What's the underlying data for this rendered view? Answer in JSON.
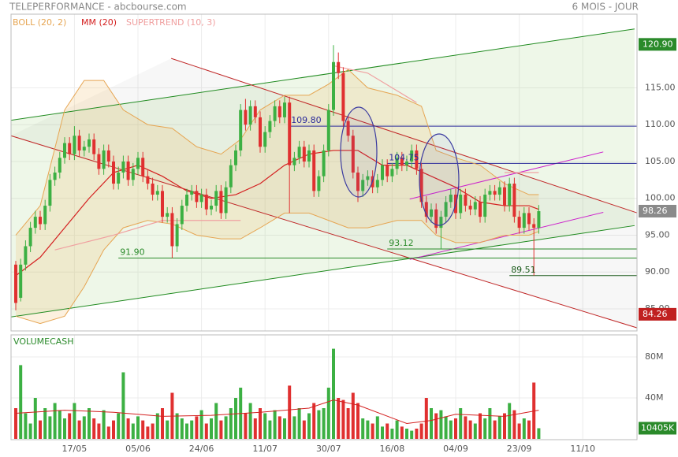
{
  "header": {
    "title": "TELEPERFORMANCE - abcbourse.com",
    "period": "6 MOIS - JOUR"
  },
  "chart_data": [
    {
      "type": "candlestick",
      "ylim": [
        82,
        125
      ],
      "yticks": [
        {
          "value": 85,
          "label": "85.00"
        },
        {
          "value": 90,
          "label": "90.00"
        },
        {
          "value": 95,
          "label": "95.00"
        },
        {
          "value": 100,
          "label": "100.00"
        },
        {
          "value": 105,
          "label": "105.00"
        },
        {
          "value": 110,
          "label": "110.00"
        },
        {
          "value": 115,
          "label": "115.00"
        }
      ],
      "grid": true,
      "up_color": "#3cb043",
      "down_color": "#e03030",
      "open": [
        91.0,
        86.5,
        91.0,
        93.5,
        96.0,
        97.5,
        96.5,
        99.0,
        102.5,
        103.5,
        105.5,
        107.5,
        106.0,
        108.5,
        106.5,
        107.0,
        108.0,
        106.0,
        104.0,
        106.5,
        105.0,
        102.0,
        103.5,
        105.0,
        102.5,
        104.0,
        105.5,
        103.0,
        102.0,
        100.5,
        101.0,
        97.5,
        98.0,
        93.5,
        96.5,
        99.0,
        100.5,
        101.0,
        99.5,
        100.5,
        98.5,
        99.0,
        101.0,
        98.0,
        101.5,
        104.5,
        106.5,
        112.0,
        110.0,
        112.5,
        111.0,
        107.0,
        109.0,
        110.5,
        112.5,
        111.0,
        113.0,
        104.5,
        105.5,
        107.0,
        105.0,
        106.5,
        101.0,
        103.0,
        106.5,
        112.0,
        118.5,
        117.0,
        110.5,
        108.5,
        103.5,
        101.0,
        102.5,
        103.0,
        101.5,
        102.5,
        104.5,
        103.0,
        104.0,
        105.5,
        104.5,
        105.0,
        106.5,
        104.0,
        99.5,
        97.5,
        98.5,
        96.0,
        97.5,
        99.5,
        100.5,
        98.0,
        100.5,
        99.0,
        98.5,
        99.5,
        97.5,
        100.5,
        101.0,
        100.5,
        101.5,
        99.0,
        102.0,
        97.5,
        96.0,
        98.0,
        96.5,
        96.0
      ],
      "high": [
        91.5,
        91.8,
        94.3,
        96.8,
        98.3,
        98.3,
        99.8,
        103.3,
        104.3,
        106.3,
        108.3,
        108.3,
        109.8,
        109.3,
        107.8,
        108.8,
        108.8,
        106.8,
        107.3,
        107.3,
        105.8,
        104.3,
        105.8,
        105.8,
        104.8,
        106.3,
        106.3,
        103.8,
        102.8,
        101.8,
        101.8,
        98.8,
        98.8,
        97.3,
        99.8,
        101.3,
        101.8,
        101.8,
        101.3,
        101.3,
        99.8,
        101.8,
        101.8,
        102.3,
        105.3,
        107.3,
        112.8,
        113.5,
        113.3,
        113.3,
        111.8,
        109.8,
        111.3,
        113.3,
        113.3,
        113.8,
        113.8,
        106.3,
        107.8,
        107.8,
        107.3,
        107.3,
        103.8,
        107.3,
        112.8,
        120.8,
        119.8,
        117.8,
        111.3,
        109.3,
        104.3,
        103.3,
        103.8,
        103.8,
        103.3,
        105.3,
        105.3,
        104.8,
        106.3,
        106.3,
        105.8,
        107.3,
        107.3,
        104.8,
        100.3,
        99.3,
        99.3,
        98.3,
        100.3,
        101.3,
        101.3,
        101.3,
        101.3,
        99.8,
        100.3,
        100.3,
        101.3,
        101.8,
        101.8,
        102.3,
        102.3,
        102.8,
        102.8,
        98.3,
        98.8,
        98.8,
        97.3,
        99.1
      ],
      "low": [
        84.8,
        86.0,
        90.2,
        92.7,
        95.2,
        95.7,
        95.7,
        98.2,
        101.7,
        102.7,
        104.7,
        105.2,
        105.2,
        105.7,
        105.7,
        106.2,
        105.2,
        103.2,
        103.2,
        104.2,
        101.2,
        101.2,
        102.7,
        101.7,
        101.7,
        103.2,
        102.2,
        101.2,
        99.7,
        99.7,
        96.7,
        96.7,
        91.9,
        92.7,
        95.7,
        98.2,
        99.7,
        98.7,
        98.7,
        97.7,
        97.7,
        98.2,
        97.2,
        97.2,
        100.7,
        103.7,
        105.7,
        109.2,
        109.2,
        110.2,
        106.2,
        106.2,
        108.2,
        109.7,
        110.2,
        110.2,
        98.0,
        103.7,
        104.7,
        104.2,
        104.2,
        100.2,
        100.2,
        102.2,
        105.7,
        111.2,
        116.2,
        109.7,
        107.7,
        102.7,
        99.5,
        100.2,
        101.7,
        100.7,
        100.7,
        101.7,
        102.2,
        102.2,
        103.2,
        103.7,
        103.7,
        104.2,
        103.2,
        98.7,
        96.7,
        96.7,
        95.2,
        93.1,
        96.7,
        98.7,
        97.2,
        97.2,
        98.2,
        97.7,
        97.7,
        96.7,
        96.7,
        99.7,
        99.7,
        99.7,
        98.2,
        98.2,
        96.7,
        95.2,
        95.2,
        95.7,
        89.51,
        95.2
      ],
      "close": [
        85.8,
        91.0,
        93.5,
        96.0,
        97.5,
        96.5,
        99.0,
        102.5,
        103.5,
        105.5,
        107.5,
        106.0,
        108.5,
        106.5,
        107.0,
        108.0,
        106.0,
        104.0,
        106.5,
        105.0,
        102.0,
        103.5,
        105.0,
        102.5,
        104.0,
        105.5,
        103.0,
        102.0,
        100.5,
        101.0,
        97.5,
        98.0,
        93.5,
        96.5,
        99.0,
        100.5,
        101.0,
        99.5,
        100.5,
        98.5,
        99.0,
        101.0,
        98.0,
        101.5,
        104.5,
        106.5,
        112.0,
        110.0,
        112.5,
        111.0,
        107.0,
        109.0,
        110.5,
        112.5,
        111.0,
        113.0,
        104.5,
        105.5,
        107.0,
        105.0,
        106.5,
        101.0,
        103.0,
        106.5,
        112.0,
        118.5,
        117.0,
        110.5,
        108.5,
        103.5,
        101.0,
        102.5,
        103.0,
        101.5,
        102.5,
        104.5,
        103.0,
        104.0,
        105.5,
        104.5,
        105.0,
        106.5,
        104.0,
        99.5,
        97.5,
        98.5,
        96.0,
        97.5,
        99.5,
        100.5,
        98.0,
        100.5,
        99.0,
        98.5,
        99.5,
        97.5,
        100.5,
        101.0,
        100.5,
        101.5,
        99.0,
        102.0,
        97.5,
        96.0,
        98.0,
        96.5,
        96.0,
        98.26
      ],
      "series": [
        {
          "name": "BOLL (20, 2)",
          "color": "#e6a552",
          "x": [
            0,
            5,
            10,
            14,
            18,
            22,
            27,
            32,
            37,
            42,
            46,
            50,
            55,
            60,
            64,
            68,
            72,
            78,
            83,
            86,
            90,
            95,
            100,
            105,
            107
          ],
          "upper": [
            95,
            99,
            112,
            116,
            116,
            112,
            110,
            109.5,
            107,
            106,
            108,
            112,
            114,
            114,
            115.5,
            117.5,
            115,
            114,
            112.5,
            106.5,
            105.5,
            104.5,
            102,
            100.5,
            100.5
          ],
          "lower": [
            84,
            83,
            84,
            88,
            93,
            96,
            97,
            96.5,
            95,
            94.5,
            94.5,
            96,
            98,
            98,
            97,
            96,
            96,
            97,
            97,
            95,
            94,
            94,
            95,
            95,
            95.5
          ]
        },
        {
          "name": "MM (20)",
          "color": "#d42020",
          "x": [
            0,
            5,
            10,
            15,
            20,
            25,
            30,
            35,
            40,
            45,
            50,
            55,
            60,
            65,
            70,
            75,
            80,
            85,
            90,
            95,
            100,
            105,
            107
          ],
          "values": [
            89.5,
            92,
            96,
            100,
            103.5,
            104.5,
            103,
            101,
            100,
            100.5,
            102,
            104.5,
            106,
            106.5,
            106.5,
            104.5,
            104.5,
            103,
            101.5,
            99.5,
            99,
            99,
            98.5
          ]
        },
        {
          "name": "SUPERTREND (10, 3)",
          "color": "#f0a0a0",
          "x": [
            8,
            20,
            30,
            46,
            47,
            65,
            72,
            82,
            83,
            100,
            107
          ],
          "values": [
            93,
            95,
            97,
            97,
            null,
            118,
            117,
            113,
            null,
            103.5,
            103.5
          ]
        }
      ],
      "trendlines": [
        {
          "color": "#1f8a1f",
          "from": [
            -1,
            110.6
          ],
          "to": [
            126.6,
            123.0
          ]
        },
        {
          "color": "#1f8a1f",
          "from": [
            -1,
            83.9
          ],
          "to": [
            126.6,
            96.3
          ]
        },
        {
          "color": "#c02828",
          "from": [
            31.8,
            119.0
          ],
          "to": [
            127.7,
            97.9
          ]
        },
        {
          "color": "#c02828",
          "from": [
            -1,
            108.5
          ],
          "to": [
            127.7,
            82.3
          ]
        },
        {
          "color": "#cc22cc",
          "from": [
            80.6,
            99.9
          ],
          "to": [
            120.2,
            106.3
          ]
        },
        {
          "color": "#cc22cc",
          "from": [
            80.6,
            91.7
          ],
          "to": [
            120.2,
            98.1
          ]
        }
      ],
      "hlines": [
        {
          "value": 109.8,
          "label": "109.80",
          "from": 56,
          "color": "#2a2a9a"
        },
        {
          "value": 104.75,
          "label": "104.75",
          "from": 76,
          "color": "#2a2a9a"
        },
        {
          "value": 93.12,
          "label": "93.12",
          "from": 76,
          "color": "#2a8a2a"
        },
        {
          "value": 91.9,
          "label": "91.90",
          "from": 21,
          "color": "#2a8a2a"
        },
        {
          "value": 89.51,
          "label": "89.51",
          "from": 101,
          "color": "#1a5a1a"
        }
      ],
      "markers": [
        {
          "value": 120.9,
          "label": "120.90",
          "color": "#2a8a2a"
        },
        {
          "value": 98.26,
          "label": "98.26",
          "color": "#8a8a8a"
        },
        {
          "value": 84.26,
          "label": "84.26",
          "color": "#c02020"
        }
      ]
    },
    {
      "type": "bar",
      "title": "VOLUMECASH",
      "ylim": [
        0,
        100
      ],
      "yticks": [
        {
          "value": 40,
          "label": "40M"
        },
        {
          "value": 80,
          "label": "80M"
        }
      ],
      "categories": [
        null,
        null,
        null,
        null,
        null,
        null,
        null,
        null,
        null,
        null,
        null,
        null,
        "17/05",
        null,
        null,
        null,
        null,
        null,
        null,
        null,
        null,
        null,
        null,
        null,
        null,
        "05/06",
        null,
        null,
        null,
        null,
        null,
        null,
        null,
        null,
        null,
        null,
        null,
        null,
        "24/06",
        null,
        null,
        null,
        null,
        null,
        null,
        null,
        null,
        null,
        null,
        null,
        null,
        "11/07",
        null,
        null,
        null,
        null,
        null,
        null,
        null,
        null,
        null,
        null,
        null,
        null,
        "30/07",
        null,
        null,
        null,
        null,
        null,
        null,
        null,
        null,
        null,
        null,
        null,
        null,
        "16/08",
        null,
        null,
        null,
        null,
        null,
        null,
        null,
        null,
        null,
        null,
        null,
        null,
        "04/09",
        null,
        null,
        null,
        null,
        null,
        null,
        null,
        null,
        null,
        null,
        null,
        null,
        "23/09",
        null,
        null,
        null,
        null,
        null,
        null,
        null,
        null,
        null,
        null,
        null,
        null,
        "11/10",
        null,
        null,
        null,
        null,
        null,
        null,
        null,
        null,
        null,
        null,
        null
      ],
      "values": [
        30,
        72,
        25,
        15,
        40,
        18,
        30,
        22,
        35,
        28,
        20,
        25,
        35,
        18,
        22,
        30,
        20,
        15,
        28,
        12,
        18,
        25,
        65,
        20,
        15,
        22,
        18,
        12,
        15,
        25,
        30,
        18,
        45,
        25,
        20,
        15,
        18,
        22,
        28,
        15,
        20,
        35,
        18,
        22,
        30,
        40,
        50,
        25,
        35,
        20,
        30,
        25,
        18,
        28,
        22,
        20,
        52,
        22,
        30,
        18,
        25,
        35,
        28,
        30,
        50,
        88,
        40,
        38,
        30,
        45,
        35,
        20,
        18,
        15,
        22,
        12,
        15,
        10,
        18,
        12,
        10,
        8,
        10,
        15,
        40,
        30,
        25,
        28,
        22,
        18,
        20,
        30,
        22,
        18,
        15,
        25,
        20,
        30,
        18,
        22,
        25,
        35,
        28,
        15,
        20,
        18,
        55,
        10.405,
        null,
        null,
        null,
        null,
        null,
        null,
        null,
        null,
        null,
        null,
        null,
        null,
        null,
        null,
        null,
        null,
        null,
        null,
        null,
        null
      ],
      "ma": {
        "color": "#d42020",
        "x": [
          0,
          10,
          20,
          30,
          40,
          50,
          60,
          65,
          70,
          80,
          85,
          90,
          100,
          107
        ],
        "values": [
          25,
          28,
          26,
          22,
          23,
          26,
          30,
          38,
          33,
          15,
          18,
          24,
          22,
          28
        ]
      },
      "last": {
        "value": 10.405,
        "label": "10405K",
        "color": "#2a8a2a"
      }
    }
  ]
}
